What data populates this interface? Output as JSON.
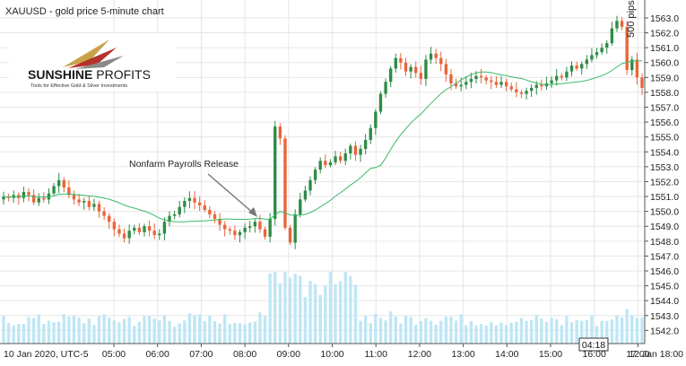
{
  "header": {
    "title": "XAUUSD - gold price 5-minute chart"
  },
  "logo": {
    "brand_bold": "SUNSHINE",
    "brand_rest": " PROFITS",
    "tagline": "Tools for Effective Gold & Silver Investments"
  },
  "annotation": {
    "text": "Nonfarm Payrolls Release"
  },
  "volume_label": "500 pips",
  "crosshair_time": "04:18",
  "colors": {
    "up": "#2e8b47",
    "down": "#e8653a",
    "ma": "#3cb96a",
    "volume": "#bfe6f4",
    "grid": "#e6e6e6",
    "axis_text": "#222222"
  },
  "chart_data": {
    "type": "candlestick",
    "title": "XAUUSD - gold price 5-minute chart",
    "x_start_label": "10 Jan 2020, UTC-5",
    "x_ticks": [
      "05:00",
      "06:00",
      "07:00",
      "08:00",
      "09:00",
      "10:00",
      "11:00",
      "12:00",
      "13:00",
      "14:00",
      "15:00",
      "16:00",
      "17:00",
      "18:00"
    ],
    "x_end_label": "12 Jan 18:00",
    "y_ticks": [
      1542,
      1543,
      1544,
      1545,
      1546,
      1547,
      1548,
      1549,
      1550,
      1551,
      1552,
      1553,
      1554,
      1555,
      1556,
      1557,
      1558,
      1559,
      1560,
      1561,
      1562,
      1563
    ],
    "ylim": [
      1541.6,
      1563.6
    ],
    "series_closes": [
      1551.0,
      1550.9,
      1551.1,
      1550.9,
      1551.3,
      1551.1,
      1550.6,
      1550.9,
      1550.8,
      1551.2,
      1551.7,
      1552.1,
      1551.6,
      1551.1,
      1550.8,
      1550.6,
      1550.7,
      1550.3,
      1550.5,
      1550.0,
      1549.7,
      1549.3,
      1548.8,
      1548.5,
      1548.2,
      1548.7,
      1548.9,
      1548.6,
      1549.0,
      1548.7,
      1548.4,
      1548.5,
      1549.3,
      1549.7,
      1549.8,
      1550.3,
      1550.7,
      1550.9,
      1550.6,
      1550.4,
      1550.1,
      1549.8,
      1549.5,
      1549.1,
      1548.8,
      1548.7,
      1548.4,
      1548.6,
      1548.9,
      1549.0,
      1549.3,
      1548.8,
      1548.3,
      1549.5,
      1555.7,
      1554.9,
      1548.9,
      1547.9,
      1549.8,
      1550.8,
      1551.4,
      1552.1,
      1552.8,
      1553.4,
      1553.1,
      1553.3,
      1553.7,
      1553.4,
      1553.9,
      1554.4,
      1553.8,
      1554.2,
      1554.8,
      1555.6,
      1556.7,
      1557.9,
      1558.7,
      1559.6,
      1560.3,
      1560.0,
      1559.4,
      1559.7,
      1559.3,
      1558.9,
      1560.2,
      1560.6,
      1560.3,
      1559.9,
      1559.2,
      1558.6,
      1558.4,
      1558.5,
      1558.7,
      1558.9,
      1559.1,
      1559.0,
      1558.8,
      1558.7,
      1558.5,
      1558.7,
      1558.4,
      1558.2,
      1558.0,
      1557.9,
      1558.1,
      1558.3,
      1558.5,
      1558.4,
      1558.6,
      1558.8,
      1559.1,
      1559.0,
      1559.4,
      1559.8,
      1559.6,
      1559.9,
      1560.2,
      1560.5,
      1560.7,
      1561.0,
      1561.3,
      1562.3,
      1562.8,
      1562.4,
      1559.5,
      1560.2,
      1559.0,
      1558.3
    ],
    "ma_period": 20
  }
}
